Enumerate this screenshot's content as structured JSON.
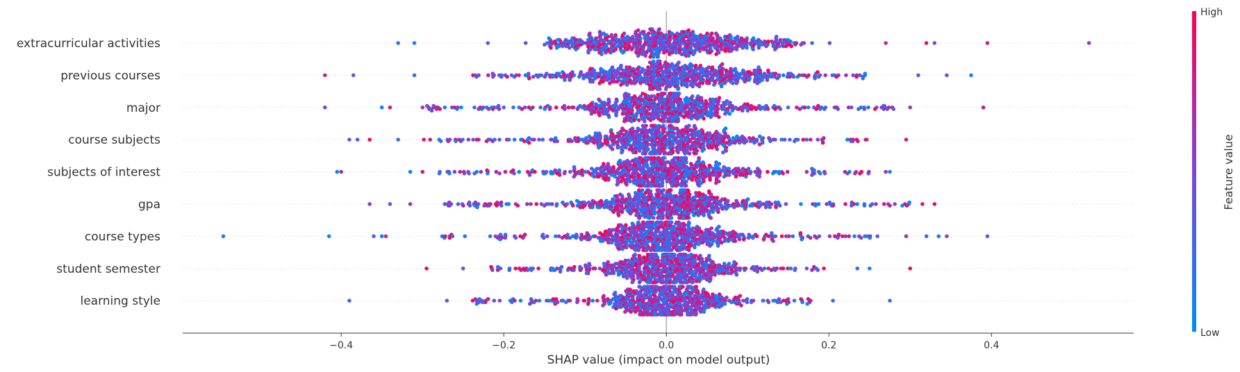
{
  "chart_data": {
    "type": "scatter",
    "subtype": "shap-beeswarm",
    "xlabel": "SHAP value (impact on model output)",
    "xlim": [
      -0.595,
      0.575
    ],
    "xticks": [
      -0.4,
      -0.2,
      0.0,
      0.2,
      0.4
    ],
    "xtick_labels": [
      "−0.4",
      "−0.2",
      "0.0",
      "0.2",
      "0.4"
    ],
    "zero_line": true,
    "grid": false,
    "features": [
      {
        "name": "extracurricular activities",
        "min": -0.33,
        "max": 0.52,
        "core_low": -0.15,
        "core_high": 0.17,
        "density_spread": 0.075,
        "outliers": [
          -0.33,
          -0.31,
          0.27,
          0.32,
          0.33,
          0.395,
          0.52
        ]
      },
      {
        "name": "previous courses",
        "min": -0.42,
        "max": 0.375,
        "core_low": -0.25,
        "core_high": 0.25,
        "density_spread": 0.075,
        "outliers": [
          -0.42,
          -0.385,
          -0.31,
          0.31,
          0.345,
          0.375
        ]
      },
      {
        "name": "major",
        "min": -0.42,
        "max": 0.39,
        "core_low": -0.3,
        "core_high": 0.28,
        "density_spread": 0.06,
        "outliers": [
          -0.42,
          -0.35,
          -0.34,
          0.3,
          0.39
        ]
      },
      {
        "name": "course subjects",
        "min": -0.39,
        "max": 0.295,
        "core_low": -0.3,
        "core_high": 0.25,
        "density_spread": 0.055,
        "outliers": [
          -0.39,
          -0.38,
          -0.365,
          -0.33,
          0.295
        ]
      },
      {
        "name": "subjects of interest",
        "min": -0.405,
        "max": 0.275,
        "core_low": -0.28,
        "core_high": 0.25,
        "density_spread": 0.055,
        "outliers": [
          -0.405,
          -0.4,
          -0.315,
          -0.3,
          0.27,
          0.275
        ]
      },
      {
        "name": "gpa",
        "min": -0.365,
        "max": 0.33,
        "core_low": -0.28,
        "core_high": 0.3,
        "density_spread": 0.055,
        "outliers": [
          -0.365,
          -0.34,
          -0.315,
          0.315,
          0.33
        ]
      },
      {
        "name": "course types",
        "min": -0.545,
        "max": 0.395,
        "core_low": -0.28,
        "core_high": 0.26,
        "density_spread": 0.05,
        "outliers": [
          -0.545,
          -0.415,
          -0.36,
          -0.35,
          -0.345,
          0.295,
          0.32,
          0.335,
          0.345,
          0.395
        ]
      },
      {
        "name": "student semester",
        "min": -0.295,
        "max": 0.3,
        "core_low": -0.23,
        "core_high": 0.2,
        "density_spread": 0.045,
        "outliers": [
          -0.295,
          -0.25,
          0.235,
          0.25,
          0.3
        ]
      },
      {
        "name": "learning style",
        "min": -0.39,
        "max": 0.275,
        "core_low": -0.24,
        "core_high": 0.18,
        "density_spread": 0.04,
        "outliers": [
          -0.39,
          -0.27,
          0.205,
          0.275
        ]
      }
    ],
    "colorbar": {
      "title": "Feature value",
      "high_label": "High",
      "low_label": "Low",
      "high_color": "#ff0052",
      "low_color": "#008bfb",
      "mid_color": "#7c46d8"
    },
    "axis_color": "#333333",
    "zero_line_color": "#999999",
    "row_line_color": "#cccccc"
  }
}
